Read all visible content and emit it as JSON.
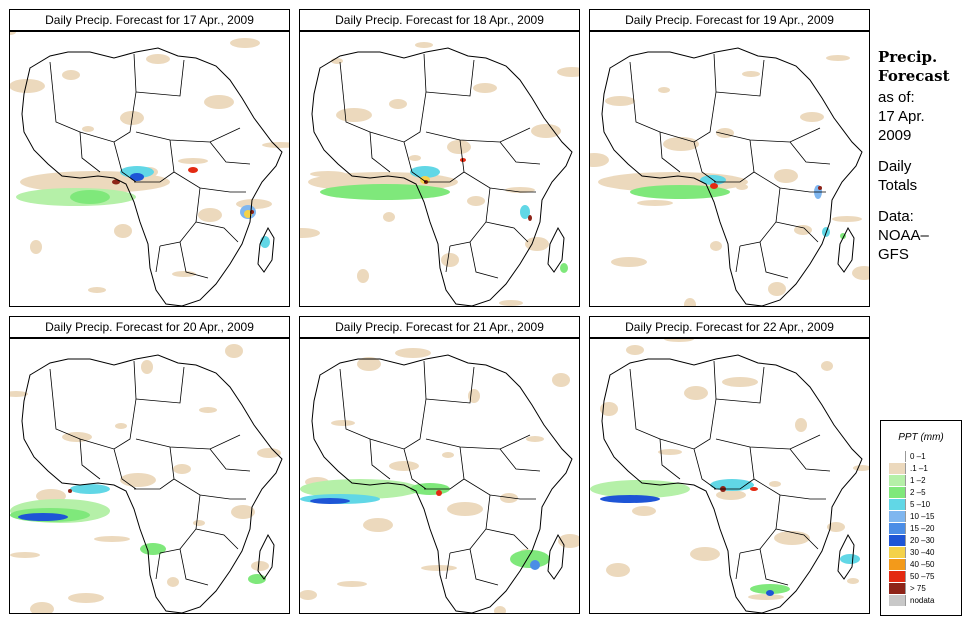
{
  "panels": [
    {
      "title": "Daily Precip. Forecast for  17 Apr., 2009"
    },
    {
      "title": "Daily Precip. Forecast for  18 Apr., 2009"
    },
    {
      "title": "Daily Precip. Forecast for  19 Apr., 2009"
    },
    {
      "title": "Daily Precip. Forecast for  20 Apr., 2009"
    },
    {
      "title": "Daily Precip. Forecast for  21 Apr., 2009"
    },
    {
      "title": "Daily Precip. Forecast for  22 Apr., 2009"
    }
  ],
  "sidebar": {
    "heading1": "Precip.",
    "heading2": "Forecast",
    "asof": "as of:",
    "date1": "17 Apr.",
    "date2": "2009",
    "daily": "Daily",
    "totals": "Totals",
    "data_label": "Data:",
    "source1": "NOAA–",
    "source2": "GFS"
  },
  "legend": {
    "title": "PPT (mm)",
    "items": [
      {
        "label": "0 –1",
        "color": "#ffffff"
      },
      {
        "label": ".1 –1",
        "color": "#ecd9bd"
      },
      {
        "label": "1 –2",
        "color": "#b5f0a8"
      },
      {
        "label": "2 –5",
        "color": "#7fe87b"
      },
      {
        "label": "5 –10",
        "color": "#61d7e6"
      },
      {
        "label": "10 –15",
        "color": "#7fb6ef"
      },
      {
        "label": "15 –20",
        "color": "#4b8de6"
      },
      {
        "label": "20 –30",
        "color": "#1e55d6"
      },
      {
        "label": "30 –40",
        "color": "#f4d24a"
      },
      {
        "label": "40 –50",
        "color": "#f39a1a"
      },
      {
        "label": "50 –75",
        "color": "#e32a12"
      },
      {
        "label": "> 75",
        "color": "#8e2418"
      },
      {
        "label": "nodata",
        "color": "#c8c8c8"
      }
    ]
  }
}
